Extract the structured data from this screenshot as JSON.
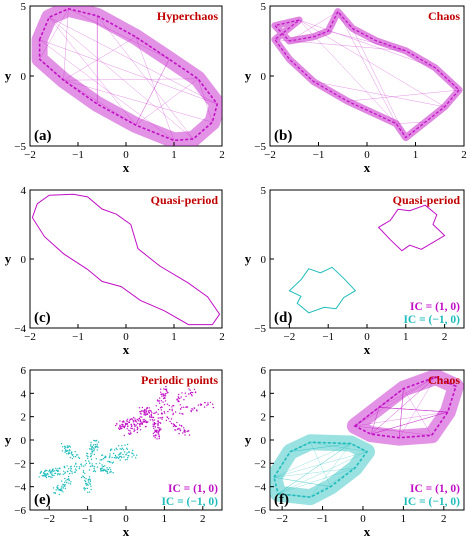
{
  "colors": {
    "magenta": "#c10fc6",
    "cyan": "#1fbcbc",
    "title": "#c00000"
  },
  "chart_data": [
    {
      "type": "scatter",
      "panel_label": "(a)",
      "title": "Hyperchaos",
      "xlabel": "x",
      "ylabel": "y",
      "xlim": [
        -2,
        2
      ],
      "ylim": [
        -5,
        5
      ],
      "xticks": [
        -2,
        -1,
        0,
        1,
        2
      ],
      "yticks": [
        -5,
        0,
        5
      ],
      "grid": false,
      "legend": [],
      "series": [
        {
          "color": "#c10fc6",
          "style": "band",
          "points": [
            [
              -1.8,
              2.6
            ],
            [
              -1.6,
              4.2
            ],
            [
              -1.2,
              4.8
            ],
            [
              -0.6,
              4.3
            ],
            [
              0.2,
              2.8
            ],
            [
              0.9,
              1.2
            ],
            [
              1.5,
              -0.2
            ],
            [
              1.9,
              -2.0
            ],
            [
              1.8,
              -3.3
            ],
            [
              1.4,
              -4.5
            ],
            [
              1.0,
              -4.6
            ],
            [
              0.2,
              -3.5
            ],
            [
              -0.6,
              -2.0
            ],
            [
              -1.3,
              -0.3
            ],
            [
              -1.8,
              1.2
            ],
            [
              -1.8,
              2.6
            ]
          ]
        }
      ]
    },
    {
      "type": "scatter",
      "panel_label": "(b)",
      "title": "Chaos",
      "xlabel": "x",
      "ylabel": "y",
      "xlim": [
        -2,
        2
      ],
      "ylim": [
        -5,
        5
      ],
      "xticks": [
        -2,
        -1,
        0,
        1,
        2
      ],
      "yticks": [
        -5,
        0,
        5
      ],
      "grid": false,
      "legend": [],
      "series": [
        {
          "color": "#c10fc6",
          "style": "band-thin",
          "points": [
            [
              -1.4,
              4.0
            ],
            [
              -1.9,
              3.6
            ],
            [
              -1.6,
              2.5
            ],
            [
              -1.1,
              2.8
            ],
            [
              -0.8,
              3.2
            ],
            [
              -0.6,
              4.6
            ],
            [
              -0.3,
              3.4
            ],
            [
              0.2,
              2.5
            ],
            [
              0.8,
              1.8
            ],
            [
              1.4,
              0.6
            ],
            [
              1.9,
              -1.0
            ],
            [
              1.6,
              -2.2
            ],
            [
              1.2,
              -3.3
            ],
            [
              0.8,
              -4.4
            ],
            [
              0.6,
              -3.4
            ],
            [
              0.1,
              -2.6
            ],
            [
              -0.4,
              -1.8
            ],
            [
              -1.1,
              -0.4
            ],
            [
              -1.6,
              1.2
            ],
            [
              -1.9,
              2.6
            ],
            [
              -1.4,
              4.0
            ]
          ]
        }
      ]
    },
    {
      "type": "line",
      "panel_label": "(c)",
      "title": "Quasi-period",
      "xlabel": "x",
      "ylabel": "y",
      "xlim": [
        -2,
        2
      ],
      "ylim": [
        -4,
        4
      ],
      "xticks": [
        -2,
        -1,
        0,
        1,
        2
      ],
      "yticks": [
        -4,
        0,
        4
      ],
      "grid": false,
      "legend": [],
      "series": [
        {
          "color": "#c10fc6",
          "style": "line",
          "points": [
            [
              -1.85,
              3.2
            ],
            [
              -1.6,
              3.7
            ],
            [
              -1.1,
              3.75
            ],
            [
              -0.8,
              3.6
            ],
            [
              -0.5,
              2.9
            ],
            [
              -0.2,
              2.6
            ],
            [
              0.1,
              2.0
            ],
            [
              0.25,
              0.6
            ],
            [
              0.7,
              -0.4
            ],
            [
              1.3,
              -1.4
            ],
            [
              1.7,
              -2.2
            ],
            [
              1.95,
              -3.2
            ],
            [
              1.8,
              -3.8
            ],
            [
              1.3,
              -3.8
            ],
            [
              0.8,
              -3.0
            ],
            [
              0.3,
              -2.4
            ],
            [
              -0.1,
              -1.6
            ],
            [
              -0.5,
              -1.3
            ],
            [
              -0.8,
              -0.6
            ],
            [
              -1.3,
              0.3
            ],
            [
              -1.7,
              1.3
            ],
            [
              -1.95,
              2.4
            ],
            [
              -1.85,
              3.2
            ]
          ]
        }
      ]
    },
    {
      "type": "line",
      "panel_label": "(d)",
      "title": "Quasi-period",
      "xlabel": "x",
      "ylabel": "y",
      "xlim": [
        -2.5,
        2.5
      ],
      "ylim": [
        -5,
        5
      ],
      "xticks": [
        -2,
        -1,
        0,
        1,
        2
      ],
      "yticks": [
        -5,
        0,
        5
      ],
      "grid": false,
      "legend": [
        {
          "label": "IC = (1, 0)",
          "color": "#c10fc6"
        },
        {
          "label": "IC = (−1, 0)",
          "color": "#1fbcbc"
        }
      ],
      "series": [
        {
          "color": "#c10fc6",
          "style": "line",
          "points": [
            [
              0.3,
              2.3
            ],
            [
              0.6,
              2.8
            ],
            [
              0.8,
              3.6
            ],
            [
              1.1,
              3.5
            ],
            [
              1.5,
              3.9
            ],
            [
              1.8,
              3.2
            ],
            [
              1.7,
              2.5
            ],
            [
              2.0,
              1.7
            ],
            [
              1.7,
              1.2
            ],
            [
              1.4,
              0.7
            ],
            [
              1.1,
              1.0
            ],
            [
              0.9,
              0.6
            ],
            [
              0.6,
              1.4
            ],
            [
              0.3,
              2.3
            ]
          ]
        },
        {
          "color": "#1fbcbc",
          "style": "line",
          "points": [
            [
              -2.0,
              -2.3
            ],
            [
              -1.7,
              -1.5
            ],
            [
              -1.5,
              -0.7
            ],
            [
              -1.2,
              -1.0
            ],
            [
              -0.9,
              -0.6
            ],
            [
              -0.6,
              -1.4
            ],
            [
              -0.3,
              -2.3
            ],
            [
              -0.6,
              -2.8
            ],
            [
              -0.8,
              -3.6
            ],
            [
              -1.1,
              -3.5
            ],
            [
              -1.5,
              -3.9
            ],
            [
              -1.8,
              -3.2
            ],
            [
              -1.7,
              -2.7
            ],
            [
              -2.0,
              -2.3
            ]
          ]
        }
      ]
    },
    {
      "type": "scatter",
      "panel_label": "(e)",
      "title": "Periodic points",
      "xlabel": "x",
      "ylabel": "y",
      "xlim": [
        -2.5,
        2.5
      ],
      "ylim": [
        -6,
        6
      ],
      "xticks": [
        -2,
        -1,
        0,
        1,
        2
      ],
      "yticks": [
        -6,
        -4,
        -2,
        0,
        2,
        4,
        6
      ],
      "grid": false,
      "legend": [
        {
          "label": "IC = (1, 0)",
          "color": "#c10fc6"
        },
        {
          "label": "IC = (−1, 0)",
          "color": "#1fbcbc"
        }
      ],
      "series": [
        {
          "color": "#c10fc6",
          "style": "dots",
          "points": [
            [
              -0.2,
              1.2
            ],
            [
              0.4,
              2.6
            ],
            [
              1.0,
              4.3
            ],
            [
              1.8,
              4.4
            ],
            [
              2.2,
              3.0
            ],
            [
              1.6,
              0.6
            ],
            [
              0.8,
              0.3
            ],
            [
              0.0,
              0.6
            ],
            [
              -0.2,
              1.2
            ]
          ]
        },
        {
          "color": "#1fbcbc",
          "style": "dots",
          "points": [
            [
              -2.2,
              -3.0
            ],
            [
              -1.6,
              -0.6
            ],
            [
              -0.8,
              -0.3
            ],
            [
              0.0,
              -0.6
            ],
            [
              0.2,
              -1.2
            ],
            [
              -0.4,
              -2.6
            ],
            [
              -1.0,
              -4.3
            ],
            [
              -1.8,
              -4.4
            ],
            [
              -2.2,
              -3.0
            ]
          ]
        }
      ]
    },
    {
      "type": "scatter",
      "panel_label": "(f)",
      "title": "Chaos",
      "xlabel": "x",
      "ylabel": "y",
      "xlim": [
        -2.3,
        2.5
      ],
      "ylim": [
        -6,
        6
      ],
      "xticks": [
        -2,
        -1,
        0,
        1,
        2
      ],
      "yticks": [
        -6,
        -4,
        -2,
        0,
        2,
        4,
        6
      ],
      "grid": false,
      "legend": [
        {
          "label": "IC = (1, 0)",
          "color": "#c10fc6"
        },
        {
          "label": "IC = (−1, 0)",
          "color": "#1fbcbc"
        }
      ],
      "series": [
        {
          "color": "#c10fc6",
          "style": "band",
          "points": [
            [
              -0.2,
              1.2
            ],
            [
              0.4,
              2.8
            ],
            [
              1.0,
              4.4
            ],
            [
              1.8,
              5.4
            ],
            [
              2.3,
              4.6
            ],
            [
              2.1,
              2.4
            ],
            [
              1.7,
              0.4
            ],
            [
              0.9,
              0.2
            ],
            [
              0.2,
              0.5
            ],
            [
              -0.2,
              1.2
            ]
          ]
        },
        {
          "color": "#1fbcbc",
          "style": "band",
          "points": [
            [
              -2.2,
              -3.2
            ],
            [
              -1.8,
              -1.0
            ],
            [
              -1.3,
              -0.2
            ],
            [
              -0.3,
              -0.3
            ],
            [
              0.1,
              -1.0
            ],
            [
              -0.2,
              -2.4
            ],
            [
              -0.8,
              -4.0
            ],
            [
              -1.3,
              -4.9
            ],
            [
              -2.1,
              -4.6
            ],
            [
              -2.2,
              -3.2
            ]
          ]
        }
      ]
    }
  ]
}
